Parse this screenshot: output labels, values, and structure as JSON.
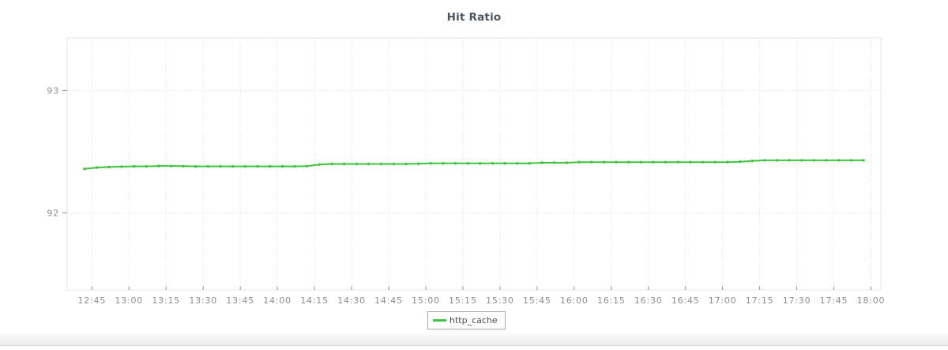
{
  "chart_data": {
    "type": "line",
    "title": "Hit Ratio",
    "xlabel": "",
    "ylabel": "",
    "x_tick_labels": [
      "12:45",
      "13:00",
      "13:15",
      "13:30",
      "13:45",
      "14:00",
      "14:15",
      "14:30",
      "14:45",
      "15:00",
      "15:15",
      "15:30",
      "15:45",
      "16:00",
      "16:15",
      "16:30",
      "16:45",
      "17:00",
      "17:15",
      "17:30",
      "17:45",
      "18:00"
    ],
    "y_ticks": [
      92,
      93
    ],
    "xlim": [
      "12:35",
      "18:04"
    ],
    "ylim": [
      91.37,
      93.43
    ],
    "grid": "dotted",
    "legend_position": "bottom-center",
    "series": [
      {
        "name": "http_cache",
        "color": "#3fc43f",
        "x": [
          "12:42",
          "12:47",
          "12:52",
          "12:57",
          "13:02",
          "13:07",
          "13:12",
          "13:17",
          "13:22",
          "13:27",
          "13:32",
          "13:37",
          "13:42",
          "13:47",
          "13:52",
          "13:57",
          "14:02",
          "14:07",
          "14:12",
          "14:17",
          "14:22",
          "14:27",
          "14:32",
          "14:37",
          "14:42",
          "14:47",
          "14:52",
          "14:57",
          "15:02",
          "15:07",
          "15:12",
          "15:17",
          "15:22",
          "15:27",
          "15:32",
          "15:37",
          "15:42",
          "15:47",
          "15:52",
          "15:57",
          "16:02",
          "16:07",
          "16:12",
          "16:17",
          "16:22",
          "16:27",
          "16:32",
          "16:37",
          "16:42",
          "16:47",
          "16:52",
          "16:57",
          "17:02",
          "17:07",
          "17:12",
          "17:17",
          "17:22",
          "17:27",
          "17:32",
          "17:37",
          "17:42",
          "17:47",
          "17:52",
          "17:57"
        ],
        "values": [
          92.36,
          92.37,
          92.375,
          92.378,
          92.38,
          92.38,
          92.383,
          92.383,
          92.382,
          92.38,
          92.38,
          92.38,
          92.38,
          92.38,
          92.38,
          92.38,
          92.38,
          92.38,
          92.382,
          92.395,
          92.4,
          92.4,
          92.4,
          92.4,
          92.4,
          92.4,
          92.4,
          92.402,
          92.405,
          92.405,
          92.405,
          92.405,
          92.405,
          92.405,
          92.405,
          92.405,
          92.405,
          92.41,
          92.41,
          92.41,
          92.415,
          92.415,
          92.415,
          92.415,
          92.415,
          92.415,
          92.415,
          92.415,
          92.415,
          92.415,
          92.415,
          92.415,
          92.415,
          92.418,
          92.425,
          92.43,
          92.43,
          92.43,
          92.43,
          92.43,
          92.43,
          92.43,
          92.43,
          92.43
        ]
      }
    ],
    "colors": {
      "title": "#4b5663",
      "tick_label": "#8e8e8e",
      "tick_mark": "#909090",
      "grid_line": "#dfdfdf",
      "plot_border": "#e4e4e4",
      "legend_border": "#a9a9a9",
      "legend_text": "#4f4f4f",
      "background": "#ffffff"
    }
  }
}
